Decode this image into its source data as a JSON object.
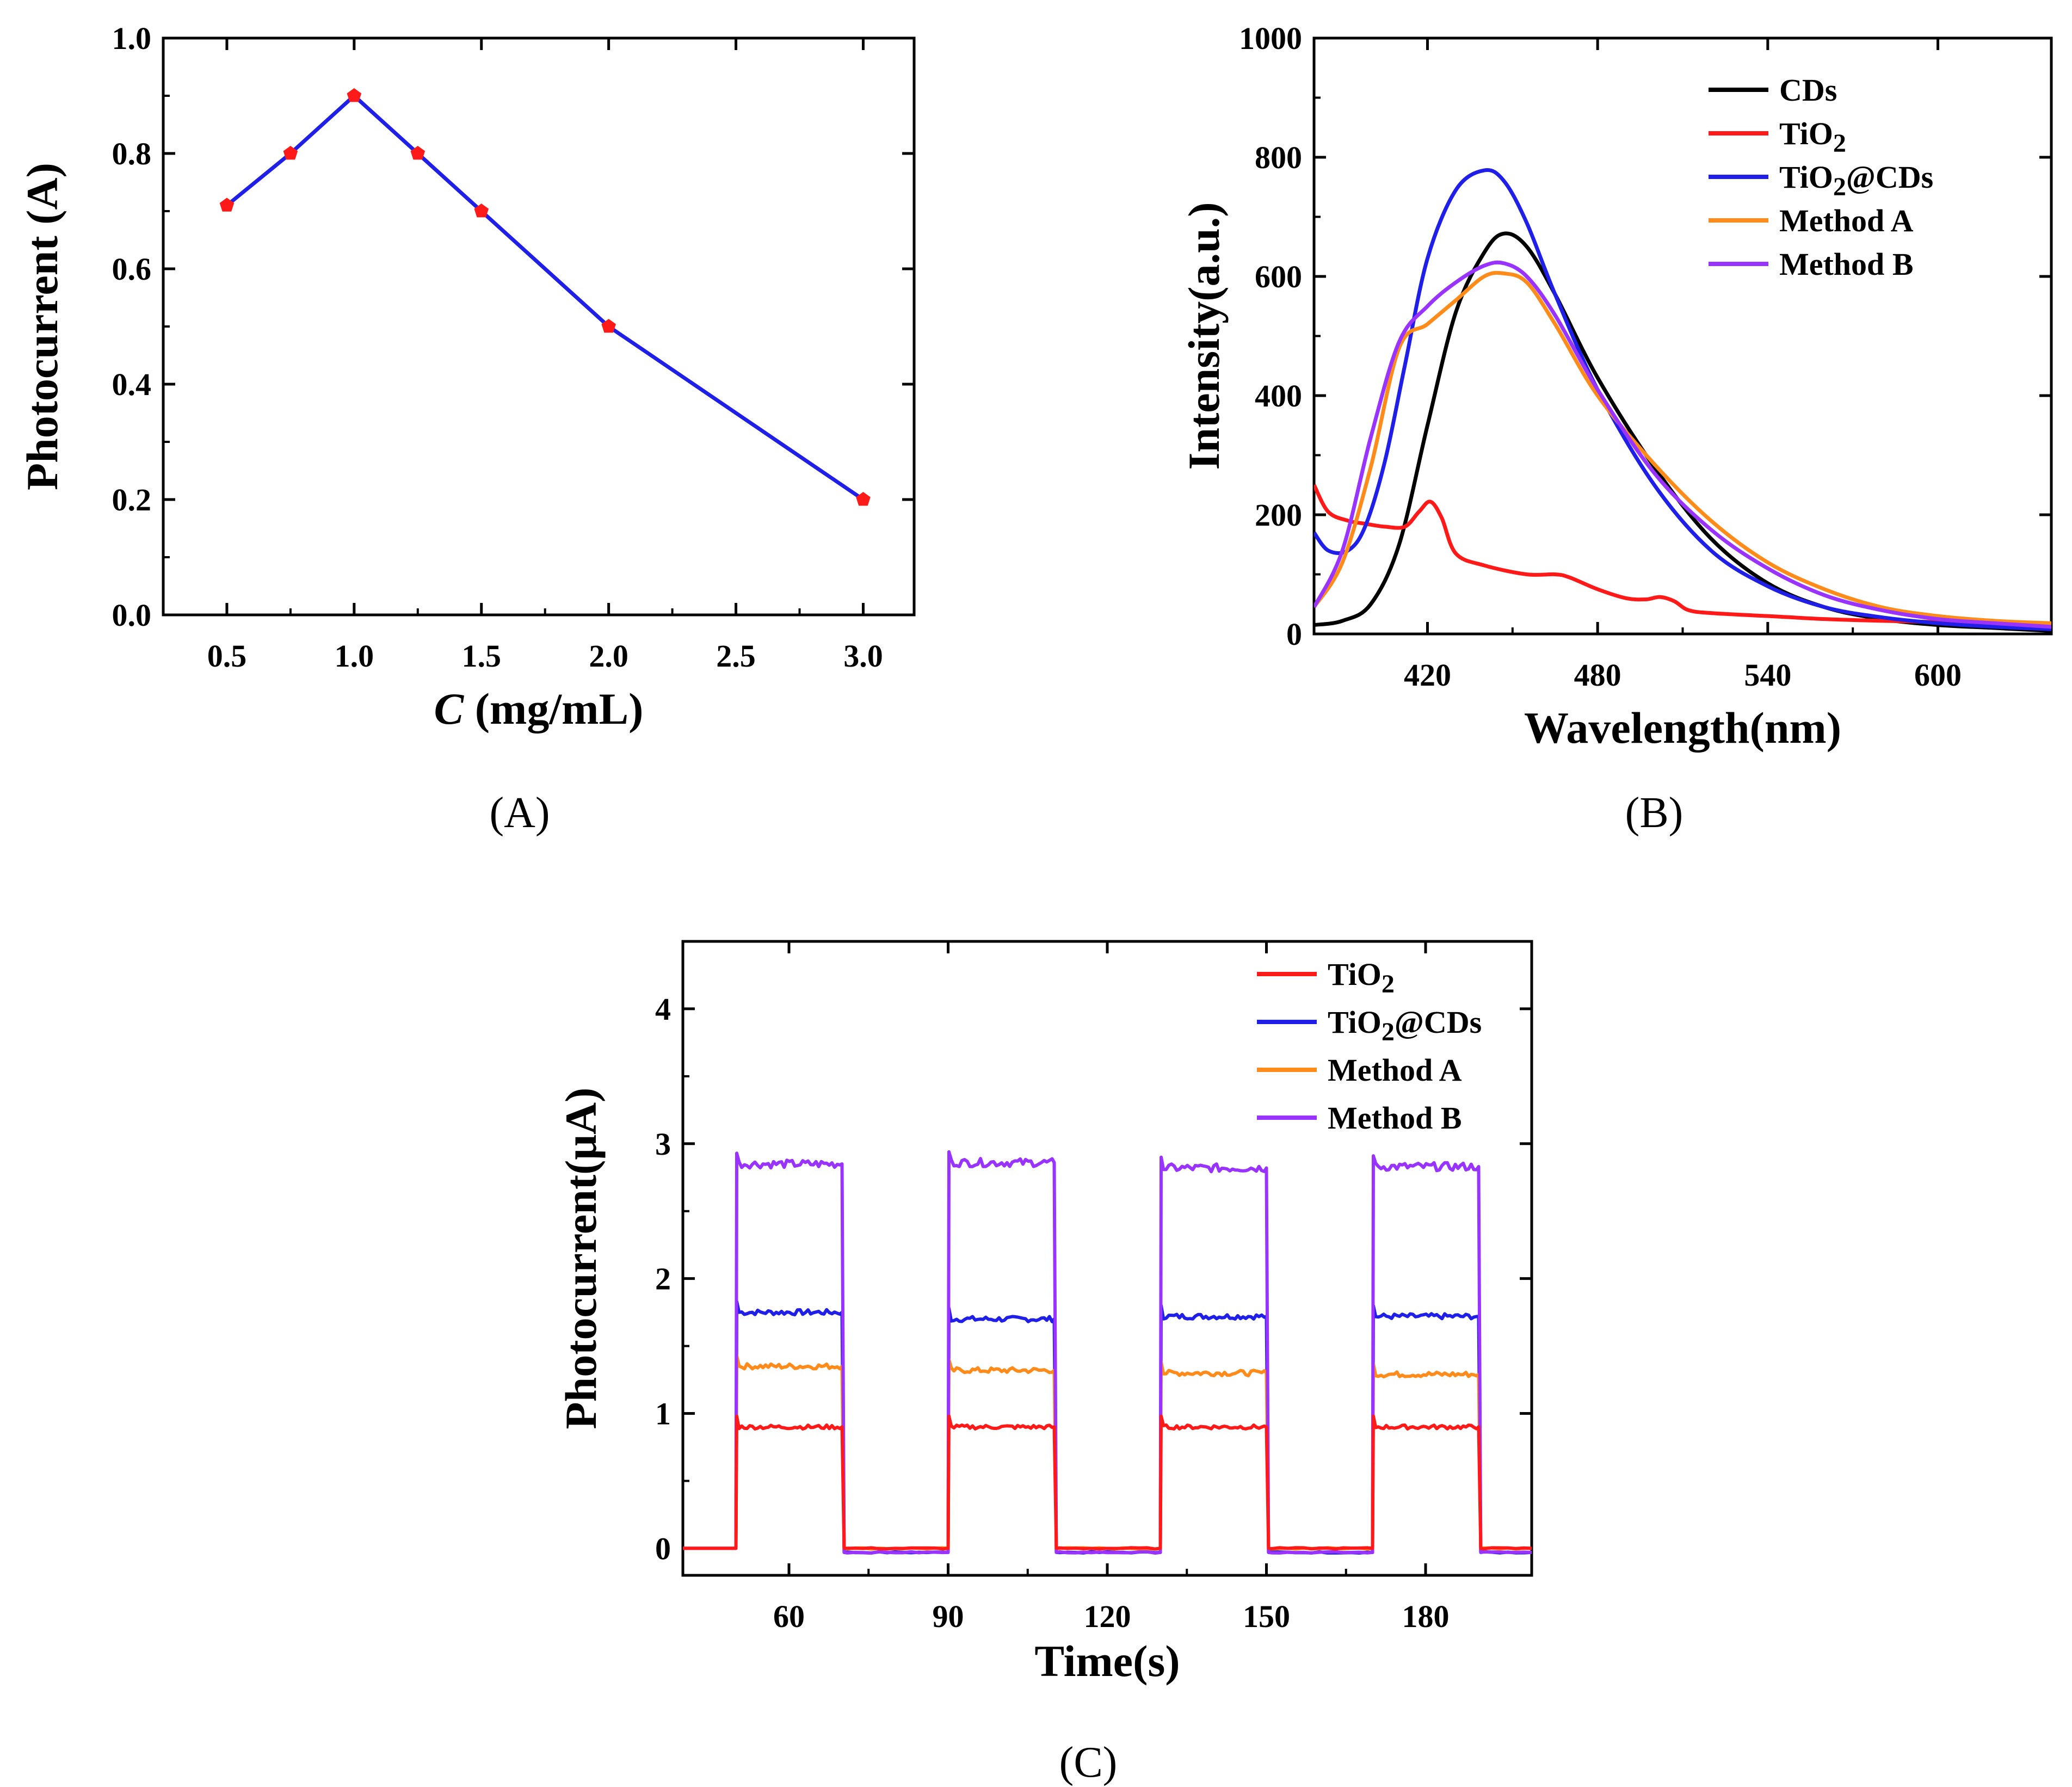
{
  "chart_data": [
    {
      "id": "A",
      "type": "line",
      "panel_label": "(A)",
      "title": "",
      "xlabel": {
        "italic": "C",
        "rest": " (mg/mL)"
      },
      "ylabel": "Photocurrent (A)",
      "xlim": [
        0.25,
        3.2
      ],
      "ylim": [
        0,
        1.0
      ],
      "xticks": [
        0.5,
        1.0,
        1.5,
        2.0,
        2.5,
        3.0
      ],
      "xtick_labels": [
        "0.5",
        "1.0",
        "1.5",
        "2.0",
        "2.5",
        "3.0"
      ],
      "yticks": [
        0,
        0.2,
        0.4,
        0.6,
        0.8,
        1.0
      ],
      "ytick_labels": [
        "0.0",
        "0.2",
        "0.4",
        "0.6",
        "0.8",
        "1.0"
      ],
      "line_color": "#1f1fe8",
      "marker_color": "#ff1a1a",
      "series": [
        {
          "name": "Photocurrent",
          "x": [
            0.5,
            0.75,
            1.0,
            1.25,
            1.5,
            2.0,
            3.0
          ],
          "y": [
            0.71,
            0.8,
            0.9,
            0.8,
            0.7,
            0.5,
            0.2
          ]
        }
      ]
    },
    {
      "id": "B",
      "type": "line",
      "panel_label": "(B)",
      "title": "",
      "xlabel": "Wavelength(nm)",
      "ylabel": "Intensity(a.u.)",
      "xlim": [
        380,
        640
      ],
      "ylim": [
        0,
        1000
      ],
      "xticks": [
        420,
        480,
        540,
        600
      ],
      "xtick_labels": [
        "420",
        "480",
        "540",
        "600"
      ],
      "yticks": [
        0,
        200,
        400,
        600,
        800,
        1000
      ],
      "ytick_labels": [
        "0",
        "200",
        "400",
        "600",
        "800",
        "1000"
      ],
      "legend_position": "top-right",
      "series": [
        {
          "name": "CDs",
          "label_main": "CDs",
          "label_sub": "",
          "label_tail": "",
          "color": "#000000",
          "x": [
            380,
            390,
            400,
            410,
            420,
            430,
            440,
            447,
            455,
            465,
            480,
            500,
            520,
            540,
            560,
            580,
            600,
            620,
            640
          ],
          "y": [
            15,
            22,
            50,
            150,
            350,
            540,
            640,
            672,
            650,
            570,
            430,
            280,
            160,
            85,
            45,
            25,
            15,
            10,
            5
          ]
        },
        {
          "name": "TiO2",
          "label_main": "TiO",
          "label_sub": "2",
          "label_tail": "",
          "color": "#ff1a1a",
          "x": [
            380,
            385,
            392,
            398,
            405,
            412,
            417,
            421,
            425,
            430,
            440,
            455,
            465,
            470,
            480,
            490,
            497,
            502,
            507,
            512,
            520,
            540,
            560,
            580,
            600,
            620,
            640
          ],
          "y": [
            250,
            205,
            190,
            185,
            180,
            180,
            205,
            222,
            195,
            135,
            115,
            100,
            100,
            95,
            75,
            60,
            58,
            62,
            55,
            40,
            35,
            30,
            25,
            22,
            20,
            18,
            15
          ]
        },
        {
          "name": "TiO2@CDs",
          "label_main": "TiO",
          "label_sub": "2",
          "label_tail": "@CDs",
          "color": "#1f1fe8",
          "x": [
            380,
            385,
            392,
            398,
            405,
            412,
            420,
            430,
            440,
            447,
            455,
            465,
            480,
            500,
            520,
            540,
            560,
            580,
            600,
            620,
            640
          ],
          "y": [
            170,
            140,
            140,
            180,
            290,
            450,
            630,
            745,
            778,
            760,
            690,
            570,
            410,
            250,
            140,
            80,
            45,
            28,
            18,
            12,
            8
          ]
        },
        {
          "name": "Method A",
          "label_main": "Method A",
          "label_sub": "",
          "label_tail": "",
          "color": "#ff8c1a",
          "x": [
            380,
            390,
            400,
            410,
            420,
            430,
            440,
            447,
            455,
            465,
            480,
            500,
            520,
            540,
            560,
            580,
            600,
            620,
            640
          ],
          "y": [
            45,
            120,
            280,
            480,
            520,
            560,
            600,
            605,
            590,
            520,
            400,
            285,
            190,
            120,
            75,
            45,
            30,
            22,
            18
          ]
        },
        {
          "name": "Method B",
          "label_main": "Method B",
          "label_sub": "",
          "label_tail": "",
          "color": "#9933ff",
          "x": [
            380,
            390,
            400,
            410,
            420,
            430,
            440,
            447,
            455,
            465,
            480,
            500,
            520,
            540,
            560,
            580,
            600,
            620,
            640
          ],
          "y": [
            45,
            140,
            330,
            490,
            550,
            590,
            618,
            622,
            600,
            535,
            410,
            270,
            175,
            110,
            65,
            40,
            25,
            18,
            12
          ]
        }
      ]
    },
    {
      "id": "C",
      "type": "line",
      "panel_label": "(C)",
      "title": "",
      "xlabel": "Time(s)",
      "ylabel": "Photocurrent(μA)",
      "xlim": [
        40,
        200
      ],
      "ylim": [
        -0.2,
        4.5
      ],
      "xticks": [
        60,
        90,
        120,
        150,
        180
      ],
      "xtick_labels": [
        "60",
        "90",
        "120",
        "150",
        "180"
      ],
      "yticks": [
        0,
        1,
        2,
        3,
        4
      ],
      "ytick_labels": [
        "0",
        "1",
        "2",
        "3",
        "4"
      ],
      "legend_position": "top-right",
      "light_on_intervals": [
        [
          50,
          70
        ],
        [
          90,
          110
        ],
        [
          130,
          150
        ],
        [
          170,
          190
        ]
      ],
      "series": [
        {
          "name": "TiO2",
          "label_main": "TiO",
          "label_sub": "2",
          "label_tail": "",
          "color": "#ff1a1a",
          "plateau": [
            0.9,
            0.9,
            0.9,
            0.9
          ],
          "off_level": 0.0,
          "noise": 0.015
        },
        {
          "name": "TiO2@CDs",
          "label_main": "TiO",
          "label_sub": "2",
          "label_tail": "@CDs",
          "color": "#1f1fe8",
          "plateau": [
            1.75,
            1.7,
            1.72,
            1.72
          ],
          "off_level": -0.03,
          "noise": 0.02
        },
        {
          "name": "Method A",
          "label_main": "Method A",
          "label_sub": "",
          "label_tail": "",
          "color": "#ff8c1a",
          "plateau": [
            1.35,
            1.32,
            1.3,
            1.29
          ],
          "off_level": 0.0,
          "noise": 0.02
        },
        {
          "name": "Method B",
          "label_main": "Method B",
          "label_sub": "",
          "label_tail": "",
          "color": "#9933ff",
          "plateau": [
            2.85,
            2.86,
            2.82,
            2.83
          ],
          "off_level": -0.03,
          "noise": 0.03
        }
      ]
    }
  ]
}
